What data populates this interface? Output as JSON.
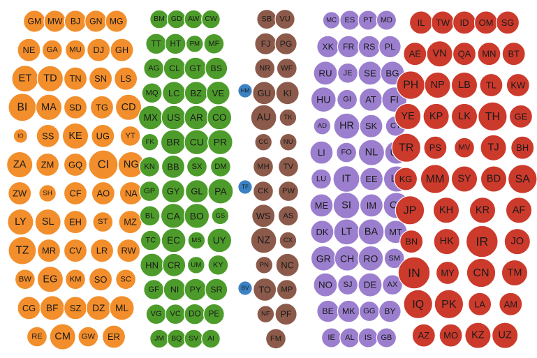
{
  "chart_data": {
    "type": "bubble-cluster",
    "title": "",
    "legend": "none",
    "series": [
      {
        "color": "#f28e2b",
        "items": [
          {
            "label": "GM",
            "value": 5
          },
          {
            "label": "MW",
            "value": 5
          },
          {
            "label": "BJ",
            "value": 6
          },
          {
            "label": "GN",
            "value": 5
          },
          {
            "label": "MG",
            "value": 5
          },
          {
            "label": "NE",
            "value": 5
          },
          {
            "label": "GA",
            "value": 4
          },
          {
            "label": "MU",
            "value": 4
          },
          {
            "label": "DJ",
            "value": 5
          },
          {
            "label": "GH",
            "value": 5
          },
          {
            "label": "ET",
            "value": 7
          },
          {
            "label": "TD",
            "value": 6
          },
          {
            "label": "TN",
            "value": 5
          },
          {
            "label": "SN",
            "value": 5
          },
          {
            "label": "LS",
            "value": 5
          },
          {
            "label": "BI",
            "value": 8
          },
          {
            "label": "MA",
            "value": 6
          },
          {
            "label": "SD",
            "value": 5
          },
          {
            "label": "TG",
            "value": 5
          },
          {
            "label": "CD",
            "value": 6
          },
          {
            "label": "IO",
            "value": 2
          },
          {
            "label": "SS",
            "value": 5
          },
          {
            "label": "KE",
            "value": 6
          },
          {
            "label": "UG",
            "value": 5
          },
          {
            "label": "YT",
            "value": 4
          },
          {
            "label": "ZA",
            "value": 6
          },
          {
            "label": "ZM",
            "value": 5
          },
          {
            "label": "GQ",
            "value": 5
          },
          {
            "label": "CI",
            "value": 8
          },
          {
            "label": "NG",
            "value": 6
          },
          {
            "label": "ZW",
            "value": 5
          },
          {
            "label": "SH",
            "value": 3
          },
          {
            "label": "CF",
            "value": 5
          },
          {
            "label": "AO",
            "value": 5
          },
          {
            "label": "NA",
            "value": 5
          },
          {
            "label": "LY",
            "value": 6
          },
          {
            "label": "SL",
            "value": 6
          },
          {
            "label": "EH",
            "value": 5
          },
          {
            "label": "ST",
            "value": 4
          },
          {
            "label": "MZ",
            "value": 5
          },
          {
            "label": "TZ",
            "value": 7
          },
          {
            "label": "MR",
            "value": 5
          },
          {
            "label": "CV",
            "value": 5
          },
          {
            "label": "LR",
            "value": 5
          },
          {
            "label": "RW",
            "value": 5
          },
          {
            "label": "BW",
            "value": 4
          },
          {
            "label": "EG",
            "value": 6
          },
          {
            "label": "KM",
            "value": 4
          },
          {
            "label": "SO",
            "value": 5
          },
          {
            "label": "SC",
            "value": 4
          },
          {
            "label": "CG",
            "value": 5
          },
          {
            "label": "BF",
            "value": 6
          },
          {
            "label": "SZ",
            "value": 5
          },
          {
            "label": "DZ",
            "value": 6
          },
          {
            "label": "ML",
            "value": 6
          },
          {
            "label": "RE",
            "value": 4
          },
          {
            "label": "CM",
            "value": 6
          },
          {
            "label": "GW",
            "value": 4
          },
          {
            "label": "ER",
            "value": 5
          }
        ]
      },
      {
        "color": "#4d9c2b",
        "items": [
          {
            "label": "BM",
            "value": 4
          },
          {
            "label": "GD",
            "value": 4
          },
          {
            "label": "AW",
            "value": 4
          },
          {
            "label": "CW",
            "value": 4
          },
          {
            "label": "TT",
            "value": 6
          },
          {
            "label": "HT",
            "value": 6
          },
          {
            "label": "PM",
            "value": 3
          },
          {
            "label": "MF",
            "value": 4
          },
          {
            "label": "AG",
            "value": 4
          },
          {
            "label": "CL",
            "value": 7
          },
          {
            "label": "GT",
            "value": 6
          },
          {
            "label": "BS",
            "value": 5
          },
          {
            "label": "MQ",
            "value": 4
          },
          {
            "label": "LC",
            "value": 5
          },
          {
            "label": "BZ",
            "value": 5
          },
          {
            "label": "VE",
            "value": 7
          },
          {
            "label": "MX",
            "value": 7
          },
          {
            "label": "US",
            "value": 8
          },
          {
            "label": "AR",
            "value": 7
          },
          {
            "label": "CO",
            "value": 7
          },
          {
            "label": "FK",
            "value": 3
          },
          {
            "label": "BR",
            "value": 7
          },
          {
            "label": "CU",
            "value": 6
          },
          {
            "label": "PR",
            "value": 6
          },
          {
            "label": "KN",
            "value": 4
          },
          {
            "label": "BB",
            "value": 5
          },
          {
            "label": "SX",
            "value": 4
          },
          {
            "label": "DM",
            "value": 4
          },
          {
            "label": "GP",
            "value": 4
          },
          {
            "label": "GY",
            "value": 5
          },
          {
            "label": "GL",
            "value": 5
          },
          {
            "label": "PA",
            "value": 6
          },
          {
            "label": "BL",
            "value": 4
          },
          {
            "label": "CA",
            "value": 7
          },
          {
            "label": "BO",
            "value": 6
          },
          {
            "label": "GS",
            "value": 3
          },
          {
            "label": "TC",
            "value": 4
          },
          {
            "label": "EC",
            "value": 6
          },
          {
            "label": "MS",
            "value": 3
          },
          {
            "label": "UY",
            "value": 6
          },
          {
            "label": "HN",
            "value": 6
          },
          {
            "label": "CR",
            "value": 5
          },
          {
            "label": "UM",
            "value": 3
          },
          {
            "label": "KY",
            "value": 4
          },
          {
            "label": "GF",
            "value": 4
          },
          {
            "label": "NI",
            "value": 7
          },
          {
            "label": "PY",
            "value": 6
          },
          {
            "label": "SR",
            "value": 5
          },
          {
            "label": "VG",
            "value": 4
          },
          {
            "label": "VC",
            "value": 4
          },
          {
            "label": "DO",
            "value": 6
          },
          {
            "label": "PE",
            "value": 6
          },
          {
            "label": "JM",
            "value": 6
          },
          {
            "label": "BQ",
            "value": 4
          },
          {
            "label": "SV",
            "value": 6
          },
          {
            "label": "AI",
            "value": 4
          }
        ]
      },
      {
        "color": "#3b82c4",
        "items": [
          {
            "label": "HM",
            "value": 2
          },
          {
            "label": "TF",
            "value": 2
          },
          {
            "label": "BV",
            "value": 2
          }
        ]
      },
      {
        "color": "#8b5a4a",
        "items": [
          {
            "label": "SB",
            "value": 5
          },
          {
            "label": "VU",
            "value": 5
          },
          {
            "label": "FJ",
            "value": 6
          },
          {
            "label": "PG",
            "value": 6
          },
          {
            "label": "NR",
            "value": 4
          },
          {
            "label": "WF",
            "value": 4
          },
          {
            "label": "GU",
            "value": 5
          },
          {
            "label": "KI",
            "value": 5
          },
          {
            "label": "AU",
            "value": 7
          },
          {
            "label": "TK",
            "value": 3
          },
          {
            "label": "CC",
            "value": 3
          },
          {
            "label": "NU",
            "value": 3
          },
          {
            "label": "MH",
            "value": 4
          },
          {
            "label": "TV",
            "value": 4
          },
          {
            "label": "CK",
            "value": 4
          },
          {
            "label": "PW",
            "value": 4
          },
          {
            "label": "WS",
            "value": 5
          },
          {
            "label": "AS",
            "value": 4
          },
          {
            "label": "NZ",
            "value": 6
          },
          {
            "label": "CX",
            "value": 3
          },
          {
            "label": "PN",
            "value": 3
          },
          {
            "label": "NC",
            "value": 5
          },
          {
            "label": "TO",
            "value": 5
          },
          {
            "label": "MP",
            "value": 4
          },
          {
            "label": "NF",
            "value": 3
          },
          {
            "label": "PF",
            "value": 5
          },
          {
            "label": "FM",
            "value": 4
          }
        ]
      },
      {
        "color": "#9b7fce",
        "items": [
          {
            "label": "MC",
            "value": 3
          },
          {
            "label": "ES",
            "value": 6
          },
          {
            "label": "PT",
            "value": 6
          },
          {
            "label": "MD",
            "value": 5
          },
          {
            "label": "XK",
            "value": 5
          },
          {
            "label": "FR",
            "value": 7
          },
          {
            "label": "RS",
            "value": 5
          },
          {
            "label": "PL",
            "value": 7
          },
          {
            "label": "RU",
            "value": 6
          },
          {
            "label": "JE",
            "value": 4
          },
          {
            "label": "SE",
            "value": 6
          },
          {
            "label": "BG",
            "value": 6
          },
          {
            "label": "HU",
            "value": 6
          },
          {
            "label": "GI",
            "value": 4
          },
          {
            "label": "AT",
            "value": 5
          },
          {
            "label": "FI",
            "value": 8
          },
          {
            "label": "AD",
            "value": 3
          },
          {
            "label": "HR",
            "value": 6
          },
          {
            "label": "SK",
            "value": 5
          },
          {
            "label": "CY",
            "value": 4
          },
          {
            "label": "LI",
            "value": 5
          },
          {
            "label": "FO",
            "value": 4
          },
          {
            "label": "NL",
            "value": 6
          },
          {
            "label": "UA",
            "value": 5
          },
          {
            "label": "LU",
            "value": 4
          },
          {
            "label": "IT",
            "value": 9
          },
          {
            "label": "EE",
            "value": 5
          },
          {
            "label": "LV",
            "value": 6
          },
          {
            "label": "ME",
            "value": 5
          },
          {
            "label": "SI",
            "value": 7
          },
          {
            "label": "IM",
            "value": 5
          },
          {
            "label": "CZ",
            "value": 6
          },
          {
            "label": "DK",
            "value": 5
          },
          {
            "label": "LT",
            "value": 6
          },
          {
            "label": "BA",
            "value": 6
          },
          {
            "label": "MT",
            "value": 5
          },
          {
            "label": "GR",
            "value": 6
          },
          {
            "label": "CH",
            "value": 6
          },
          {
            "label": "RO",
            "value": 6
          },
          {
            "label": "SM",
            "value": 4
          },
          {
            "label": "NO",
            "value": 6
          },
          {
            "label": "SJ",
            "value": 4
          },
          {
            "label": "DE",
            "value": 7
          },
          {
            "label": "AX",
            "value": 4
          },
          {
            "label": "BE",
            "value": 6
          },
          {
            "label": "MK",
            "value": 5
          },
          {
            "label": "GG",
            "value": 4
          },
          {
            "label": "BY",
            "value": 6
          },
          {
            "label": "IE",
            "value": 7
          },
          {
            "label": "AL",
            "value": 6
          },
          {
            "label": "IS",
            "value": 6
          },
          {
            "label": "GB",
            "value": 6
          }
        ]
      },
      {
        "color": "#cc3a2c",
        "items": [
          {
            "label": "IL",
            "value": 8
          },
          {
            "label": "TW",
            "value": 5
          },
          {
            "label": "ID",
            "value": 8
          },
          {
            "label": "OM",
            "value": 5
          },
          {
            "label": "SG",
            "value": 5
          },
          {
            "label": "AE",
            "value": 5
          },
          {
            "label": "VN",
            "value": 6
          },
          {
            "label": "QA",
            "value": 5
          },
          {
            "label": "MN",
            "value": 5
          },
          {
            "label": "BT",
            "value": 5
          },
          {
            "label": "PH",
            "value": 7
          },
          {
            "label": "NP",
            "value": 6
          },
          {
            "label": "LB",
            "value": 6
          },
          {
            "label": "TL",
            "value": 5
          },
          {
            "label": "KW",
            "value": 5
          },
          {
            "label": "YE",
            "value": 6
          },
          {
            "label": "KP",
            "value": 6
          },
          {
            "label": "LK",
            "value": 6
          },
          {
            "label": "TH",
            "value": 7
          },
          {
            "label": "GE",
            "value": 5
          },
          {
            "label": "TR",
            "value": 7
          },
          {
            "label": "PS",
            "value": 5
          },
          {
            "label": "MV",
            "value": 4
          },
          {
            "label": "TJ",
            "value": 6
          },
          {
            "label": "BH",
            "value": 5
          },
          {
            "label": "KG",
            "value": 5
          },
          {
            "label": "MM",
            "value": 7
          },
          {
            "label": "SY",
            "value": 6
          },
          {
            "label": "BD",
            "value": 6
          },
          {
            "label": "SA",
            "value": 7
          },
          {
            "label": "JP",
            "value": 7
          },
          {
            "label": "KH",
            "value": 6
          },
          {
            "label": "KR",
            "value": 6
          },
          {
            "label": "AF",
            "value": 6
          },
          {
            "label": "BN",
            "value": 5
          },
          {
            "label": "HK",
            "value": 6
          },
          {
            "label": "IR",
            "value": 8
          },
          {
            "label": "JO",
            "value": 6
          },
          {
            "label": "IN",
            "value": 8
          },
          {
            "label": "MY",
            "value": 5
          },
          {
            "label": "CN",
            "value": 7
          },
          {
            "label": "TM",
            "value": 6
          },
          {
            "label": "IQ",
            "value": 7
          },
          {
            "label": "PK",
            "value": 7
          },
          {
            "label": "LA",
            "value": 5
          },
          {
            "label": "AM",
            "value": 5
          },
          {
            "label": "AZ",
            "value": 5
          },
          {
            "label": "MO",
            "value": 5
          },
          {
            "label": "KZ",
            "value": 6
          },
          {
            "label": "UZ",
            "value": 6
          }
        ]
      }
    ]
  }
}
